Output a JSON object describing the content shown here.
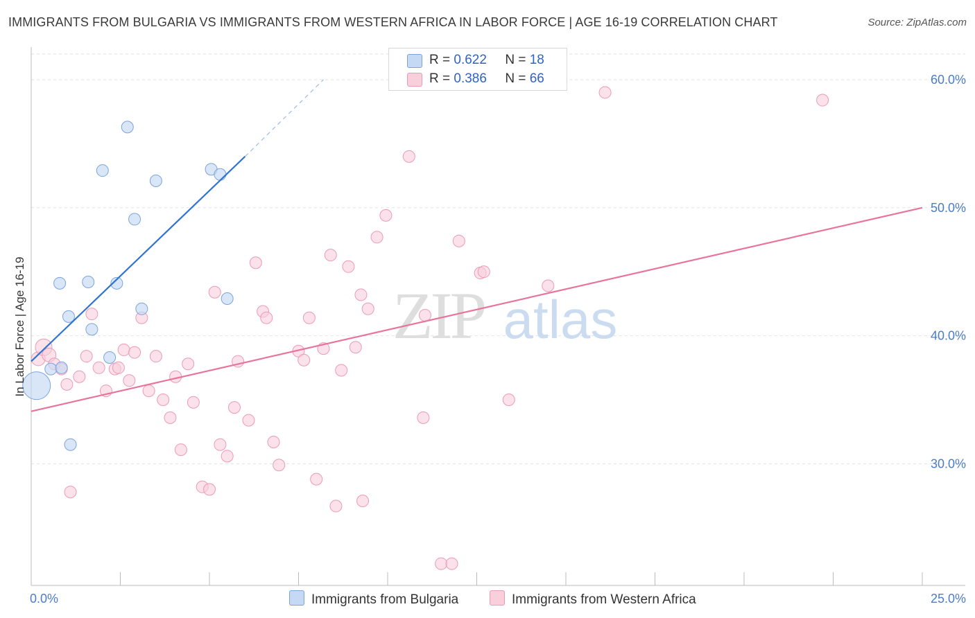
{
  "header": {
    "title": "IMMIGRANTS FROM BULGARIA VS IMMIGRANTS FROM WESTERN AFRICA IN LABOR FORCE | AGE 16-19 CORRELATION CHART",
    "source": "Source: ZipAtlas.com"
  },
  "watermark": {
    "zip": "ZIP",
    "atlas": "atlas"
  },
  "colors": {
    "bulgaria_fill": "#c5d9f4",
    "bulgaria_stroke": "#7aa3dd",
    "bulgaria_line": "#2f74d0",
    "wafrica_fill": "#f9cfdc",
    "wafrica_stroke": "#ec9ab4",
    "wafrica_line": "#e8739b",
    "tick_text": "#4a7cc9",
    "stat_value": "#2e63c4"
  },
  "stats": [
    {
      "r_label": "R =",
      "r_value": "0.622",
      "n_label": "N =",
      "n_value": "18"
    },
    {
      "r_label": "R =",
      "r_value": "0.386",
      "n_label": "N =",
      "n_value": "66"
    }
  ],
  "chart_data": {
    "type": "scatter",
    "title": "IMMIGRANTS FROM BULGARIA VS IMMIGRANTS FROM WESTERN AFRICA IN LABOR FORCE | AGE 16-19 CORRELATION CHART",
    "xlabel": "",
    "ylabel": "In Labor Force | Age 16-19",
    "xlim": [
      0,
      25
    ],
    "ylim": [
      20.5,
      62
    ],
    "x_tick_labels": [
      "0.0%",
      "25.0%"
    ],
    "y_ticks": [
      30,
      40,
      50,
      60
    ],
    "y_tick_labels": [
      "30.0%",
      "40.0%",
      "50.0%",
      "60.0%"
    ],
    "grid": true,
    "legend": [
      "Immigrants from Bulgaria",
      "Immigrants from Western Africa"
    ],
    "series": [
      {
        "name": "Immigrants from Bulgaria",
        "points": [
          [
            0.15,
            36.1
          ],
          [
            0.55,
            37.4
          ],
          [
            0.85,
            37.5
          ],
          [
            0.8,
            44.1
          ],
          [
            1.05,
            41.5
          ],
          [
            1.1,
            31.5
          ],
          [
            1.6,
            44.2
          ],
          [
            1.7,
            40.5
          ],
          [
            2.0,
            52.9
          ],
          [
            2.2,
            38.3
          ],
          [
            2.4,
            44.1
          ],
          [
            2.7,
            56.3
          ],
          [
            2.9,
            49.1
          ],
          [
            3.1,
            42.1
          ],
          [
            3.5,
            52.1
          ],
          [
            5.05,
            53.0
          ],
          [
            5.3,
            52.6
          ],
          [
            5.5,
            42.9
          ]
        ],
        "trend": {
          "x0": 0.0,
          "y0": 38.0,
          "x1": 6.0,
          "y1": 54.0,
          "dash_x1": 8.2,
          "dash_y1": 60.0
        }
      },
      {
        "name": "Immigrants from Western Africa",
        "points": [
          [
            0.2,
            38.2
          ],
          [
            0.35,
            39.1
          ],
          [
            0.5,
            38.5
          ],
          [
            0.65,
            37.8
          ],
          [
            0.85,
            37.4
          ],
          [
            1.0,
            36.2
          ],
          [
            1.1,
            27.8
          ],
          [
            1.35,
            36.8
          ],
          [
            1.55,
            38.4
          ],
          [
            1.7,
            41.7
          ],
          [
            1.9,
            37.5
          ],
          [
            2.1,
            35.7
          ],
          [
            2.35,
            37.4
          ],
          [
            2.45,
            37.5
          ],
          [
            2.6,
            38.9
          ],
          [
            2.75,
            36.5
          ],
          [
            2.9,
            38.7
          ],
          [
            3.1,
            41.4
          ],
          [
            3.3,
            35.7
          ],
          [
            3.5,
            38.4
          ],
          [
            3.7,
            35.0
          ],
          [
            3.9,
            33.6
          ],
          [
            4.05,
            36.8
          ],
          [
            4.2,
            31.1
          ],
          [
            4.4,
            37.8
          ],
          [
            4.55,
            34.8
          ],
          [
            4.8,
            28.2
          ],
          [
            5.0,
            28.0
          ],
          [
            5.15,
            43.4
          ],
          [
            5.3,
            31.5
          ],
          [
            5.5,
            30.6
          ],
          [
            5.7,
            34.4
          ],
          [
            5.8,
            38.0
          ],
          [
            6.1,
            33.4
          ],
          [
            6.3,
            45.7
          ],
          [
            6.5,
            41.9
          ],
          [
            6.6,
            41.4
          ],
          [
            6.8,
            31.7
          ],
          [
            6.95,
            29.9
          ],
          [
            7.5,
            38.8
          ],
          [
            7.65,
            38.1
          ],
          [
            7.8,
            41.4
          ],
          [
            8.0,
            28.8
          ],
          [
            8.2,
            39.0
          ],
          [
            8.4,
            46.3
          ],
          [
            8.55,
            26.7
          ],
          [
            8.7,
            37.3
          ],
          [
            8.9,
            45.4
          ],
          [
            9.1,
            39.1
          ],
          [
            9.25,
            43.2
          ],
          [
            9.3,
            27.1
          ],
          [
            9.45,
            42.1
          ],
          [
            9.7,
            47.7
          ],
          [
            9.95,
            49.4
          ],
          [
            10.6,
            54.0
          ],
          [
            11.0,
            33.6
          ],
          [
            11.05,
            41.6
          ],
          [
            11.5,
            22.2
          ],
          [
            11.8,
            22.2
          ],
          [
            12.0,
            47.4
          ],
          [
            12.6,
            44.9
          ],
          [
            12.7,
            45.0
          ],
          [
            13.4,
            35.0
          ],
          [
            14.5,
            43.9
          ],
          [
            16.1,
            59.0
          ],
          [
            22.2,
            58.4
          ]
        ],
        "trend": {
          "x0": 0.0,
          "y0": 34.1,
          "x1": 25.0,
          "y1": 50.0
        }
      }
    ]
  },
  "legend": {
    "bulgaria_label": "Immigrants from Bulgaria",
    "wafrica_label": "Immigrants from Western Africa"
  }
}
